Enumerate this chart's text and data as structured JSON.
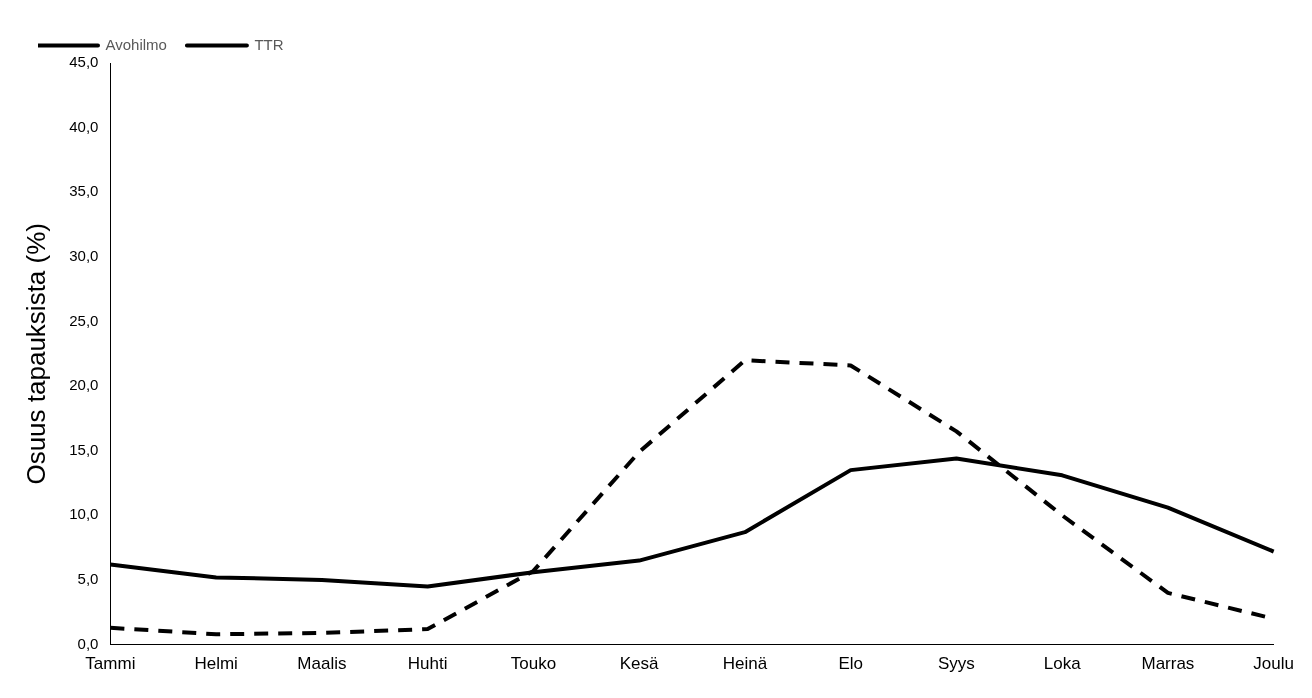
{
  "chart_data": {
    "type": "line",
    "ylabel": "Osuus tapauksista (%)",
    "categories": [
      "Tammi",
      "Helmi",
      "Maalis",
      "Huhti",
      "Touko",
      "Kesä",
      "Heinä",
      "Elo",
      "Syys",
      "Loka",
      "Marras",
      "Joulu"
    ],
    "series": [
      {
        "name": "Avohilmo",
        "color": "#000000",
        "line_style": "dashed",
        "values": [
          1.3,
          0.8,
          0.9,
          1.2,
          5.7,
          14.9,
          22.0,
          21.6,
          16.5,
          10.0,
          4.0,
          2.0
        ]
      },
      {
        "name": "TTR",
        "color": "#000000",
        "line_style": "solid",
        "values": [
          6.2,
          5.2,
          5.0,
          4.5,
          5.6,
          6.5,
          8.7,
          13.5,
          14.4,
          13.1,
          10.6,
          7.2
        ]
      }
    ],
    "ylim": [
      0,
      45
    ],
    "yticks": [
      {
        "value": 0,
        "label": "0,0"
      },
      {
        "value": 5,
        "label": "5,0"
      },
      {
        "value": 10,
        "label": "10,0"
      },
      {
        "value": 15,
        "label": "15,0"
      },
      {
        "value": 20,
        "label": "20,0"
      },
      {
        "value": 25,
        "label": "25,0"
      },
      {
        "value": 30,
        "label": "30,0"
      },
      {
        "value": 35,
        "label": "35,0"
      },
      {
        "value": 40,
        "label": "40,0"
      },
      {
        "value": 45,
        "label": "45,0"
      }
    ],
    "grid": false,
    "legend": "top left",
    "marker": "none"
  }
}
